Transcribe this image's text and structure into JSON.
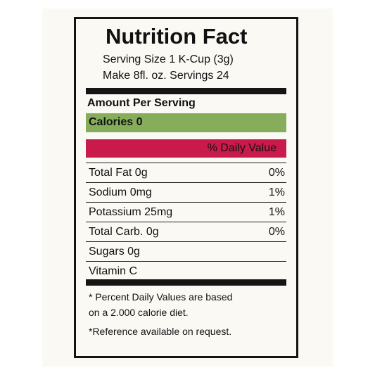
{
  "label": {
    "title": "Nutrition Fact",
    "serving_size": "Serving Size 1 K-Cup (3g)",
    "servings": "Make 8fl. oz. Servings 24",
    "amount_header": "Amount Per Serving",
    "calories": "Calories 0",
    "daily_value_header": "% Daily Value",
    "rows": [
      {
        "name": "Total Fat 0g",
        "pct": "0%"
      },
      {
        "name": "Sodium 0mg",
        "pct": "1%"
      },
      {
        "name": "Potassium 25mg",
        "pct": "1%"
      },
      {
        "name": "Total Carb. 0g",
        "pct": "0%"
      },
      {
        "name": "Sugars 0g",
        "pct": ""
      },
      {
        "name": "Vitamin C",
        "pct": ""
      }
    ],
    "footnote_1_line1": "* Percent Daily Values are based",
    "footnote_1_line2": "on a 2.000 calorie diet.",
    "footnote_2": "*Reference available on request."
  },
  "colors": {
    "calories_band": "#86ae5a",
    "daily_value_band": "#c91a4c",
    "border": "#141414",
    "background": "#fbf9f4"
  }
}
